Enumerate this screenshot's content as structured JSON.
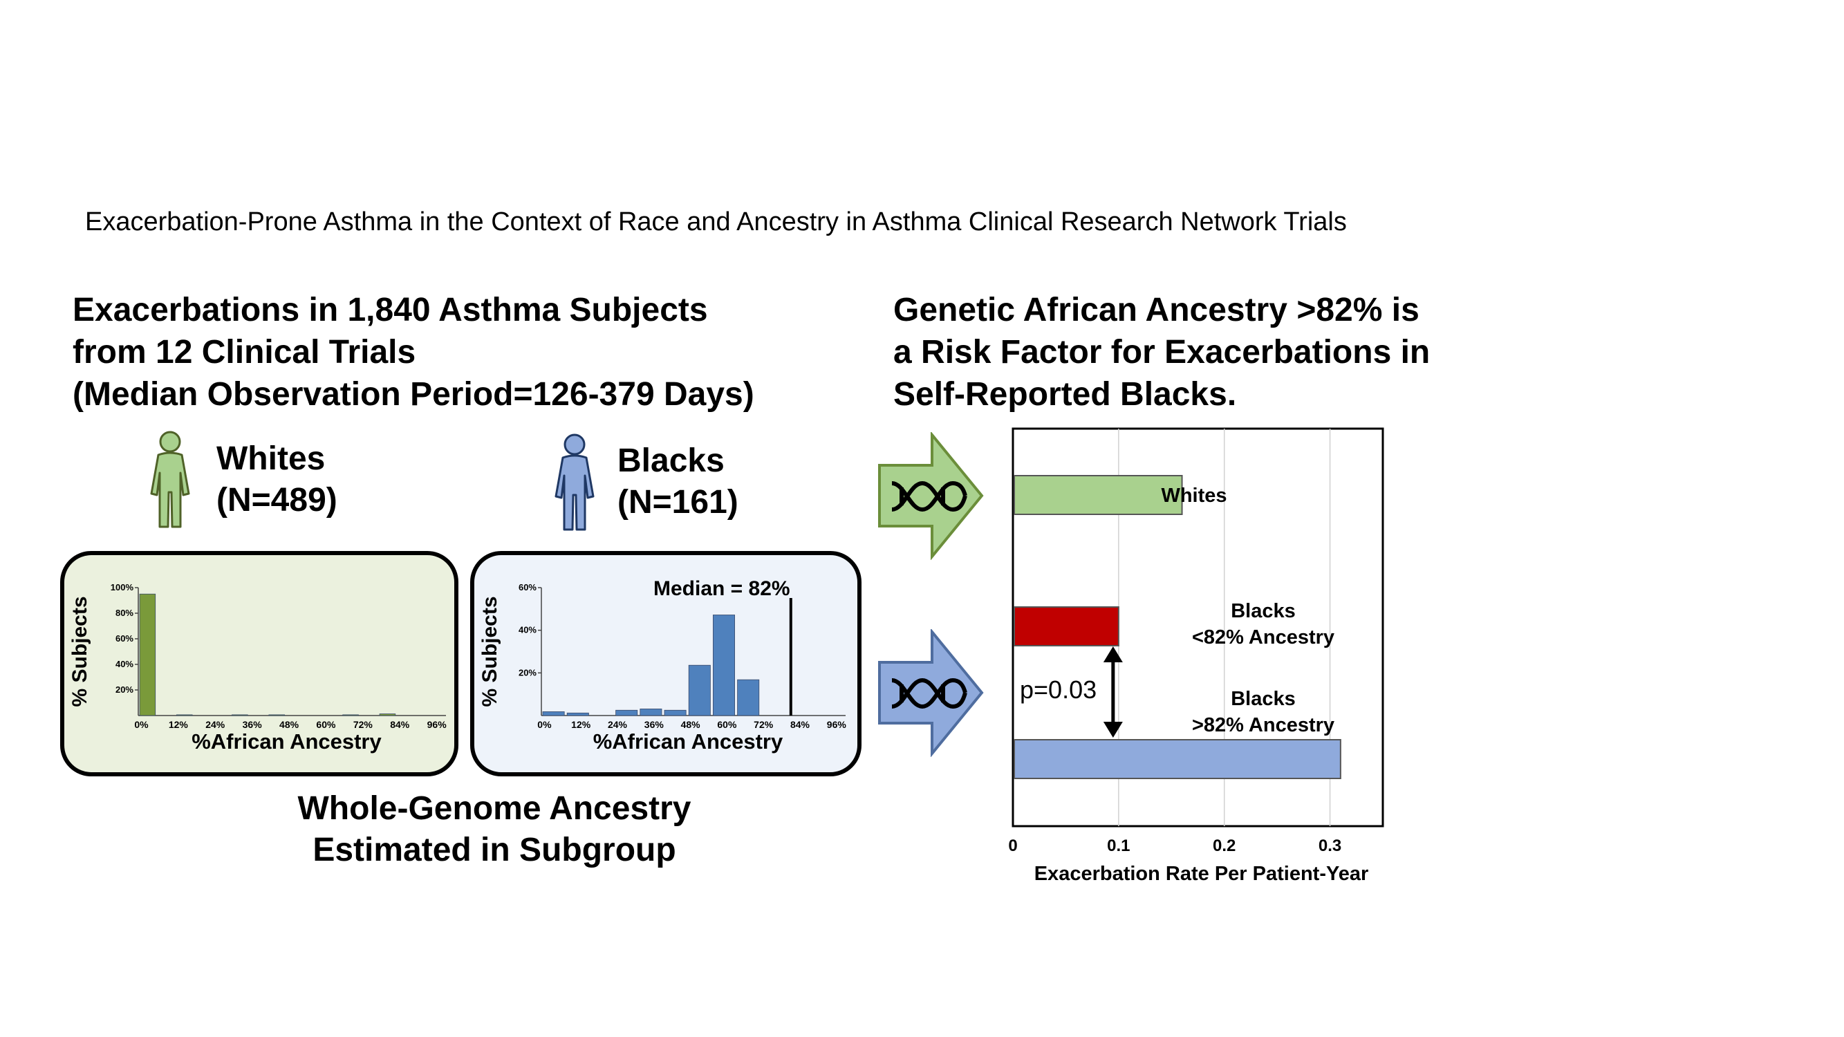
{
  "title": "Exacerbation-Prone Asthma in the Context of Race and Ancestry in Asthma Clinical Research Network Trials",
  "left_heading": {
    "line1": "Exacerbations in 1,840 Asthma Subjects",
    "line2": "from 12 Clinical Trials",
    "line3": "(Median Observation Period=126-379 Days)"
  },
  "right_heading": {
    "line1": "Genetic African Ancestry >82% is",
    "line2": "a Risk Factor for Exacerbations in",
    "line3": "Self-Reported Blacks."
  },
  "groups": {
    "whites": {
      "name": "Whites",
      "n": "(N=489)",
      "color": "#a9d18e"
    },
    "blacks": {
      "name": "Blacks",
      "n": "(N=161)",
      "color": "#8faadc"
    }
  },
  "panel_caption": {
    "line1": "Whole-Genome Ancestry",
    "line2": "Estimated in Subgroup"
  },
  "icons": {
    "person": "person-icon",
    "dna": "dna-icon",
    "arrow": "arrow-right-icon"
  },
  "chart_data": [
    {
      "type": "bar",
      "name": "whites-ancestry-histogram",
      "ylabel": "% Subjects",
      "xlabel": "%African Ancestry",
      "tick_labels": [
        "0%",
        "12%",
        "24%",
        "36%",
        "48%",
        "60%",
        "72%",
        "84%",
        "96%"
      ],
      "y_ticks": [
        "20%",
        "40%",
        "60%",
        "80%",
        "100%"
      ],
      "ylim": [
        0,
        100
      ],
      "bin_start": 0,
      "bin_width": 6,
      "bin_count": 17,
      "values": [
        95,
        0,
        0.6,
        0,
        0,
        0.6,
        0,
        0.6,
        0,
        0,
        0,
        0.6,
        0,
        1.3,
        0,
        0,
        0
      ],
      "bar_color": "#7a9a3a",
      "panel_color": "#ebf1de"
    },
    {
      "type": "bar",
      "name": "blacks-ancestry-histogram",
      "ylabel": "% Subjects",
      "xlabel": "%African Ancestry",
      "tick_labels": [
        "0%",
        "12%",
        "24%",
        "36%",
        "48%",
        "60%",
        "72%",
        "84%",
        "96%"
      ],
      "y_ticks": [
        "20%",
        "40%",
        "60%"
      ],
      "ylim": [
        0,
        60
      ],
      "bin_start": 0,
      "bin_width": 8,
      "bin_count": 13,
      "values": [
        1.8,
        1.2,
        0,
        2.5,
        3.1,
        2.5,
        23.6,
        47.2,
        16.8,
        0,
        0,
        0,
        0
      ],
      "median": 82,
      "median_label": "Median = 82%",
      "bar_color": "#4f81bd",
      "panel_color": "#eef3fa"
    },
    {
      "type": "bar",
      "orientation": "horizontal",
      "name": "exacerbation-rate-chart",
      "xlabel": "Exacerbation Rate Per Patient-Year",
      "x_ticks": [
        0,
        0.1,
        0.2,
        0.3
      ],
      "xlim": [
        0,
        0.35
      ],
      "grid": true,
      "bars": [
        {
          "label_line1": "Whites",
          "label_line2": "",
          "value": 0.16,
          "color": "#a9d18e"
        },
        {
          "label_line1": "Blacks",
          "label_line2": "<82% Ancestry",
          "value": 0.1,
          "color": "#c00000"
        },
        {
          "label_line1": "Blacks",
          "label_line2": ">82% Ancestry",
          "value": 0.31,
          "color": "#8faadc"
        }
      ],
      "annotation": "p=0.03"
    }
  ]
}
